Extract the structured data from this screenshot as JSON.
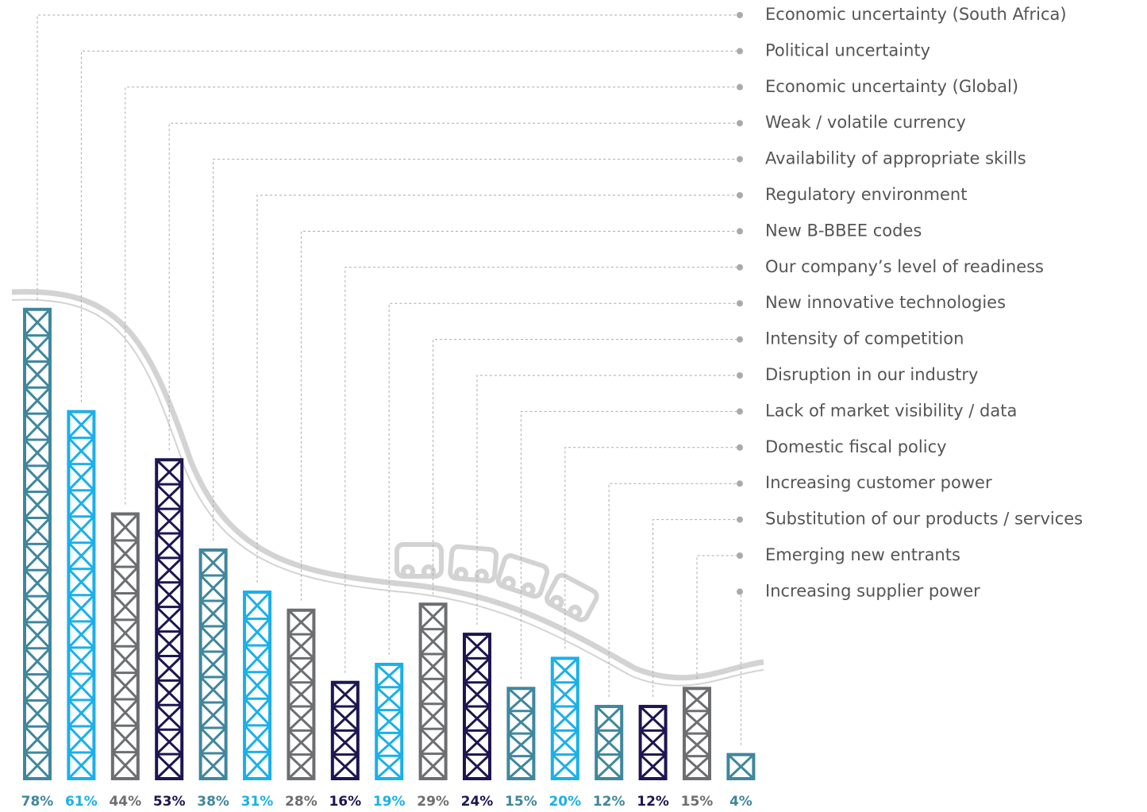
{
  "chart_data": {
    "type": "bar",
    "categories": [
      "Economic uncertainty (South Africa)",
      "Political uncertainty",
      "Economic uncertainty (Global)",
      "Weak / volatile currency",
      "Availability of appropriate skills",
      "Regulatory environment",
      "New B-BBEE codes",
      "Our company’s level of readiness",
      "New innovative technologies",
      "Intensity of competition",
      "Disruption in our industry",
      "Lack of market visibility / data",
      "Domestic fiscal policy",
      "Increasing customer power",
      "Substitution of our products / services",
      "Emerging new entrants",
      "Increasing supplier power"
    ],
    "values": [
      78,
      61,
      44,
      53,
      38,
      31,
      28,
      16,
      19,
      29,
      24,
      15,
      20,
      12,
      12,
      15,
      4
    ],
    "value_labels": [
      "78%",
      "61%",
      "44%",
      "53%",
      "38%",
      "31%",
      "28%",
      "16%",
      "19%",
      "29%",
      "24%",
      "15%",
      "20%",
      "12%",
      "12%",
      "15%",
      "4%"
    ],
    "colors": [
      "#3f879c",
      "#1ab0ea",
      "#6d6e71",
      "#1c1652",
      "#3f879c",
      "#1ab0ea",
      "#6d6e71",
      "#1c1652",
      "#1ab0ea",
      "#6d6e71",
      "#1c1652",
      "#3f879c",
      "#1ab0ea",
      "#3f879c",
      "#1c1652",
      "#6d6e71",
      "#3f879c"
    ]
  }
}
